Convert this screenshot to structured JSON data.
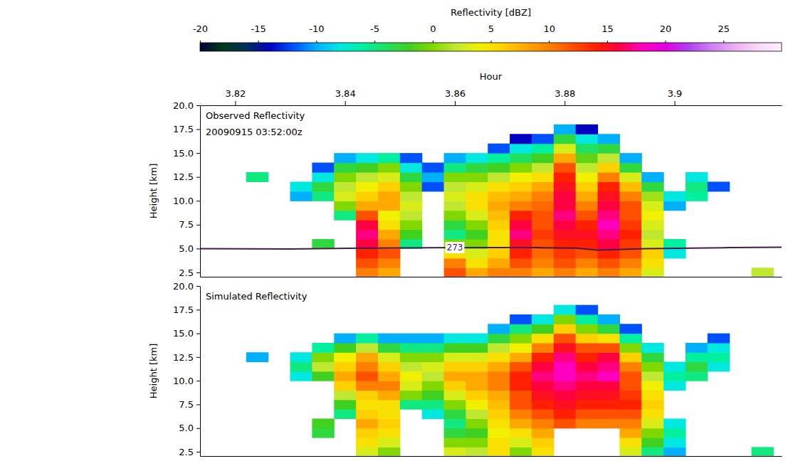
{
  "chart_data": [
    {
      "type": "heatmap",
      "title": "Observed Reflectivity",
      "subtitle": "20090915 03:52:00z",
      "x_label": "Hour",
      "y_label": "Height [km]",
      "xlim": [
        3.8136,
        3.9195
      ],
      "xticks": [
        3.82,
        3.84,
        3.86,
        3.88,
        3.9
      ],
      "ylim": [
        2.05,
        20
      ],
      "yticks": [
        {
          "value": 20,
          "label": "20.0"
        },
        17.5,
        {
          "value": 15,
          "label": "15.0"
        },
        12.5,
        {
          "value": 10,
          "label": "10.0"
        },
        7.5,
        {
          "value": 5,
          "label": "5.0"
        },
        2.5
      ],
      "colorbar": {
        "label": "Reflectivity [dBZ]",
        "range": [
          -20,
          30
        ],
        "ticks": [
          -20,
          -15,
          -10,
          -5,
          0,
          5,
          10,
          15,
          20,
          25
        ]
      },
      "x_edges": [
        3.814,
        3.818,
        3.822,
        3.826,
        3.83,
        3.834,
        3.838,
        3.842,
        3.846,
        3.85,
        3.854,
        3.858,
        3.862,
        3.866,
        3.87,
        3.874,
        3.878,
        3.882,
        3.886,
        3.89,
        3.894,
        3.898,
        3.902,
        3.906,
        3.91,
        3.914,
        3.918
      ],
      "y_edges": [
        2,
        3,
        4,
        5,
        6,
        7,
        8,
        9,
        10,
        11,
        12,
        13,
        14,
        15,
        16,
        17,
        18,
        19,
        20
      ],
      "values": [
        [
          null,
          null,
          null,
          null,
          null,
          null,
          null,
          null,
          null,
          null,
          null,
          null,
          null,
          null,
          null,
          null,
          null,
          null
        ],
        [
          null,
          null,
          null,
          null,
          null,
          null,
          null,
          null,
          null,
          null,
          null,
          null,
          null,
          null,
          null,
          null,
          null,
          null
        ],
        [
          null,
          null,
          null,
          null,
          null,
          null,
          null,
          null,
          null,
          null,
          -5,
          null,
          null,
          null,
          null,
          null,
          null,
          null
        ],
        [
          null,
          null,
          null,
          null,
          null,
          null,
          null,
          null,
          null,
          null,
          null,
          null,
          null,
          null,
          null,
          null,
          null,
          null
        ],
        [
          null,
          null,
          null,
          null,
          null,
          null,
          null,
          null,
          -10,
          -8,
          null,
          null,
          null,
          null,
          null,
          null,
          null,
          null
        ],
        [
          null,
          null,
          null,
          -3,
          null,
          null,
          null,
          null,
          -5,
          -3,
          -8,
          -12,
          null,
          null,
          null,
          null,
          null,
          null
        ],
        [
          null,
          null,
          null,
          null,
          null,
          null,
          -5,
          0,
          3,
          2,
          0,
          -3,
          -10,
          null,
          null,
          null,
          null,
          null
        ],
        [
          10,
          12,
          14,
          16,
          17,
          16,
          12,
          8,
          6,
          4,
          2,
          -2,
          -8,
          null,
          null,
          null,
          null,
          null
        ],
        [
          8,
          10,
          12,
          10,
          8,
          5,
          4,
          8,
          8,
          6,
          3,
          0,
          -6,
          null,
          null,
          null,
          null,
          null
        ],
        [
          null,
          null,
          null,
          -5,
          -2,
          0,
          2,
          3,
          2,
          0,
          -3,
          -8,
          -12,
          null,
          null,
          null,
          null,
          null
        ],
        [
          null,
          null,
          null,
          null,
          null,
          null,
          null,
          null,
          null,
          -12,
          -10,
          -12,
          null,
          null,
          null,
          null,
          null,
          null
        ],
        [
          12,
          10,
          5,
          0,
          -5,
          -3,
          0,
          2,
          3,
          2,
          0,
          -5,
          -10,
          null,
          null,
          null,
          null,
          null
        ],
        [
          8,
          5,
          3,
          0,
          -2,
          0,
          3,
          5,
          5,
          3,
          0,
          -3,
          -8,
          null,
          null,
          null,
          null,
          null
        ],
        [
          10,
          8,
          6,
          5,
          5,
          6,
          7,
          8,
          7,
          5,
          2,
          -2,
          -6,
          -12,
          null,
          null,
          null,
          null
        ],
        [
          10,
          12,
          14,
          15,
          17,
          16,
          14,
          10,
          8,
          6,
          4,
          0,
          -4,
          -8,
          -14,
          null,
          null,
          null
        ],
        [
          8,
          10,
          11,
          12,
          13,
          12,
          12,
          11,
          10,
          8,
          5,
          2,
          -2,
          -6,
          -12,
          null,
          null,
          null
        ],
        [
          10,
          12,
          13,
          14,
          15,
          16,
          17,
          16,
          16,
          15,
          14,
          12,
          8,
          3,
          -3,
          -10,
          null,
          null
        ],
        [
          8,
          10,
          12,
          14,
          15,
          14,
          12,
          10,
          8,
          6,
          4,
          2,
          -1,
          -4,
          -8,
          -14,
          null,
          null
        ],
        [
          10,
          12,
          14,
          16,
          17,
          18,
          17,
          16,
          15,
          14,
          10,
          6,
          2,
          -3,
          -10,
          null,
          null,
          null
        ],
        [
          8,
          10,
          12,
          13,
          14,
          13,
          12,
          12,
          10,
          7,
          3,
          -3,
          -10,
          null,
          null,
          null,
          null,
          null
        ],
        [
          3,
          5,
          6,
          3,
          2,
          3,
          4,
          3,
          1,
          -3,
          -10,
          null,
          null,
          null,
          null,
          null,
          null,
          null
        ],
        [
          null,
          null,
          -8,
          -6,
          null,
          null,
          null,
          -10,
          -8,
          null,
          null,
          null,
          null,
          null,
          null,
          null,
          null,
          null
        ],
        [
          null,
          null,
          null,
          null,
          null,
          null,
          null,
          null,
          -6,
          -5,
          -8,
          null,
          null,
          null,
          null,
          null,
          null,
          null
        ],
        [
          null,
          null,
          null,
          null,
          null,
          null,
          null,
          null,
          null,
          -12,
          null,
          null,
          null,
          null,
          null,
          null,
          null,
          null
        ],
        [
          null,
          null,
          null,
          null,
          null,
          null,
          null,
          null,
          null,
          null,
          null,
          null,
          null,
          null,
          null,
          null,
          null,
          null
        ],
        [
          2,
          null,
          null,
          null,
          null,
          null,
          null,
          null,
          null,
          null,
          null,
          null,
          null,
          null,
          null,
          null,
          null,
          null
        ]
      ],
      "contour": {
        "label": "273",
        "x": [
          3.8136,
          3.83,
          3.845,
          3.86,
          3.875,
          3.882,
          3.886,
          3.895,
          3.91,
          3.9195
        ],
        "values": [
          5.0,
          4.95,
          5.05,
          5.1,
          5.1,
          5.05,
          4.85,
          5.0,
          5.1,
          5.15
        ]
      }
    },
    {
      "type": "heatmap",
      "title": "Simulated Reflectivity",
      "y_label": "Height [km]",
      "xlim": [
        3.8136,
        3.9195
      ],
      "ylim": [
        2.05,
        20
      ],
      "yticks": [
        {
          "value": 20,
          "label": "20.0"
        },
        17.5,
        {
          "value": 15,
          "label": "15.0"
        },
        12.5,
        {
          "value": 10,
          "label": "10.0"
        },
        7.5,
        {
          "value": 5,
          "label": "5.0"
        },
        2.5
      ],
      "colorbar": {
        "range": [
          -20,
          30
        ]
      },
      "x_edges": [
        3.814,
        3.818,
        3.822,
        3.826,
        3.83,
        3.834,
        3.838,
        3.842,
        3.846,
        3.85,
        3.854,
        3.858,
        3.862,
        3.866,
        3.87,
        3.874,
        3.878,
        3.882,
        3.886,
        3.89,
        3.894,
        3.898,
        3.902,
        3.906,
        3.91,
        3.914,
        3.918
      ],
      "y_edges": [
        2,
        3,
        4,
        5,
        6,
        7,
        8,
        9,
        10,
        11,
        12,
        13,
        14,
        15,
        16,
        17,
        18,
        19,
        20
      ],
      "values": [
        [
          null,
          null,
          null,
          null,
          null,
          null,
          null,
          null,
          null,
          null,
          null,
          null,
          null,
          null,
          null,
          null,
          null,
          null
        ],
        [
          null,
          null,
          null,
          null,
          null,
          null,
          null,
          null,
          null,
          null,
          null,
          null,
          null,
          null,
          null,
          null,
          null,
          null
        ],
        [
          null,
          null,
          null,
          null,
          null,
          null,
          null,
          null,
          null,
          null,
          -10,
          null,
          null,
          null,
          null,
          null,
          null,
          null
        ],
        [
          null,
          null,
          null,
          null,
          null,
          null,
          null,
          null,
          null,
          null,
          null,
          null,
          null,
          null,
          null,
          null,
          null,
          null
        ],
        [
          null,
          null,
          null,
          null,
          null,
          null,
          null,
          null,
          -8,
          -5,
          -8,
          null,
          null,
          null,
          null,
          null,
          null,
          null
        ],
        [
          null,
          null,
          -3,
          -2,
          null,
          null,
          null,
          null,
          -2,
          2,
          0,
          -6,
          null,
          null,
          null,
          null,
          null,
          null
        ],
        [
          null,
          null,
          null,
          null,
          -5,
          -2,
          2,
          6,
          8,
          6,
          4,
          -2,
          -10,
          null,
          null,
          null,
          null,
          null
        ],
        [
          3,
          5,
          6,
          8,
          6,
          5,
          6,
          10,
          12,
          10,
          8,
          2,
          -6,
          null,
          null,
          null,
          null,
          null
        ],
        [
          0,
          3,
          5,
          6,
          5,
          5,
          8,
          10,
          8,
          6,
          3,
          -3,
          -10,
          null,
          null,
          null,
          null,
          null
        ],
        [
          null,
          null,
          null,
          null,
          null,
          -5,
          0,
          3,
          4,
          2,
          0,
          -5,
          -10,
          null,
          null,
          null,
          null,
          null
        ],
        [
          null,
          null,
          null,
          null,
          -8,
          -5,
          -2,
          0,
          2,
          3,
          0,
          -5,
          -10,
          null,
          null,
          null,
          null,
          null
        ],
        [
          3,
          0,
          -3,
          -5,
          -3,
          0,
          3,
          6,
          8,
          6,
          3,
          -2,
          -8,
          null,
          null,
          null,
          null,
          null
        ],
        [
          2,
          0,
          -2,
          0,
          2,
          4,
          6,
          8,
          8,
          6,
          3,
          -2,
          -8,
          null,
          null,
          null,
          null,
          null
        ],
        [
          5,
          5,
          4,
          5,
          6,
          7,
          8,
          10,
          10,
          8,
          5,
          2,
          -3,
          -10,
          null,
          null,
          null,
          null
        ],
        [
          0,
          3,
          5,
          8,
          10,
          12,
          12,
          14,
          14,
          12,
          8,
          4,
          0,
          -5,
          -12,
          null,
          null,
          null
        ],
        [
          5,
          6,
          8,
          10,
          12,
          14,
          15,
          16,
          17,
          16,
          14,
          10,
          5,
          -2,
          -8,
          null,
          null,
          null
        ],
        [
          null,
          null,
          null,
          12,
          14,
          15,
          16,
          17,
          18,
          18,
          17,
          15,
          12,
          6,
          0,
          -8,
          null,
          null
        ],
        [
          null,
          null,
          null,
          10,
          12,
          14,
          15,
          16,
          17,
          16,
          14,
          12,
          6,
          0,
          -6,
          -12,
          null,
          null
        ],
        [
          null,
          null,
          null,
          10,
          12,
          14,
          15,
          16,
          18,
          17,
          16,
          12,
          5,
          -3,
          -10,
          null,
          null,
          null
        ],
        [
          3,
          5,
          8,
          10,
          12,
          14,
          13,
          12,
          12,
          10,
          6,
          0,
          -6,
          -12,
          null,
          null,
          null,
          null
        ],
        [
          -5,
          -2,
          0,
          3,
          5,
          6,
          5,
          4,
          2,
          0,
          -3,
          -8,
          null,
          null,
          null,
          null,
          null,
          null
        ],
        [
          -10,
          -8,
          -6,
          -8,
          null,
          null,
          null,
          -8,
          -6,
          -8,
          null,
          null,
          null,
          null,
          null,
          null,
          null,
          null
        ],
        [
          null,
          null,
          null,
          null,
          null,
          null,
          null,
          null,
          -5,
          -3,
          -6,
          -10,
          null,
          null,
          null,
          null,
          null,
          null
        ],
        [
          null,
          null,
          null,
          null,
          null,
          null,
          null,
          null,
          null,
          -8,
          -6,
          -8,
          -12,
          null,
          null,
          null,
          null,
          null
        ],
        [
          null,
          null,
          null,
          null,
          null,
          null,
          null,
          null,
          null,
          null,
          null,
          null,
          null,
          null,
          null,
          null,
          null,
          null
        ],
        [
          -5,
          null,
          null,
          null,
          null,
          null,
          null,
          null,
          null,
          null,
          null,
          null,
          null,
          null,
          null,
          null,
          null,
          null
        ]
      ]
    }
  ]
}
